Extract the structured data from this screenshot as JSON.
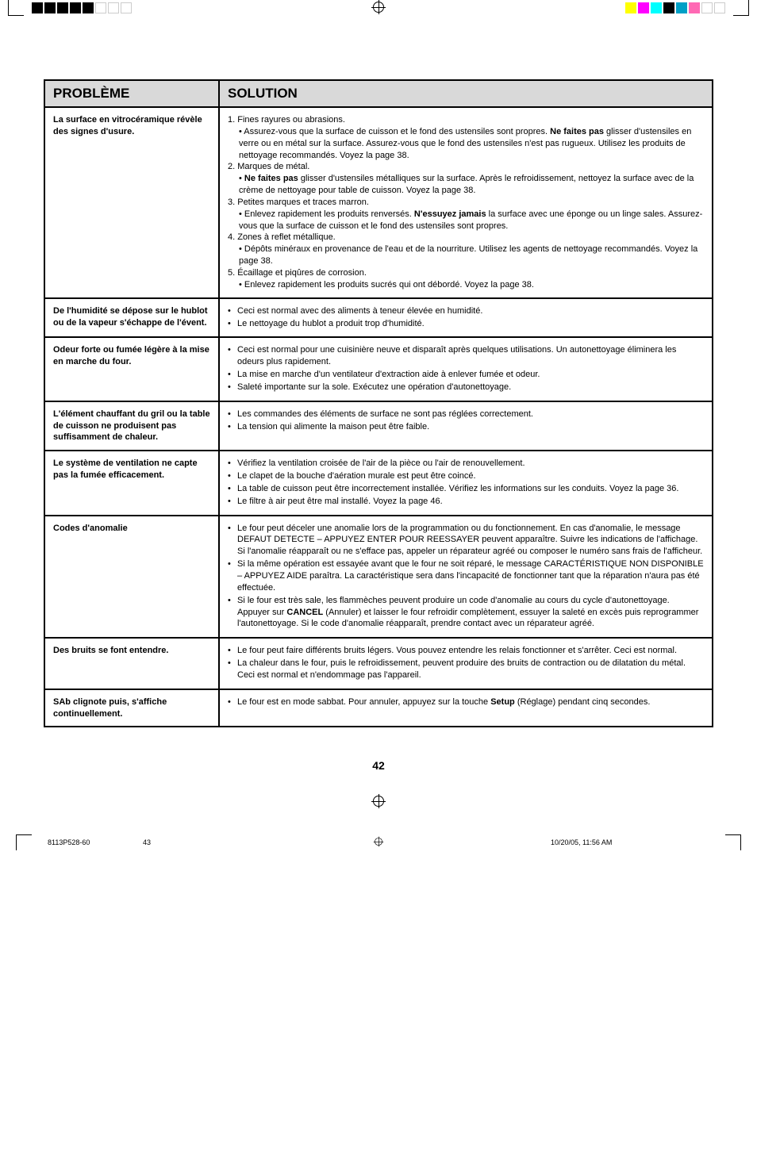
{
  "crop_colors_left": [
    "#000000",
    "#000000",
    "#000000",
    "#000000",
    "#000000",
    "#ffffff",
    "#ffffff",
    "#ffffff"
  ],
  "crop_colors_right": [
    "#ffff00",
    "#ff00ff",
    "#00ffff",
    "#000000",
    "#00a0c6",
    "#ff69b4",
    "#ffffff",
    "#ffffff"
  ],
  "header": {
    "col1": "PROBLÈME",
    "col2": "SOLUTION"
  },
  "rows": [
    {
      "problem": "La surface en vitrocéramique révèle  des signes d'usure.",
      "solution_html": "1. Fines rayures ou abrasions.<div class='sub'>• Assurez-vous que la surface de cuisson et le fond des ustensiles sont propres. <b>Ne faites pas</b> glisser d'ustensiles en verre ou en métal sur la surface.  Assurez-vous que le fond des ustensiles n'est pas rugueux. Utilisez les produits de nettoyage recommandés. Voyez la page 38.</div>2. Marques de métal.<div class='sub'>• <b>Ne faites pas</b> glisser d'ustensiles métalliques sur la surface.  Après le refroidissement, nettoyez la surface avec de la crème de nettoyage pour table de cuisson. Voyez la page 38.</div>3. Petites marques et traces marron.<div class='sub'>• Enlevez rapidement les produits renversés. <b>N'essuyez jamais</b> la surface avec une éponge ou un linge sales. Assurez-vous que la surface de cuisson et le fond des ustensiles sont propres.</div>4. Zones à reflet métallique.<div class='sub'>• Dépôts minéraux en provenance de l'eau et de la nourriture. Utilisez les agents de nettoyage recommandés. Voyez la page 38.</div>5. Écaillage et piqûres de corrosion.<div class='sub'>• Enlevez rapidement les produits sucrés qui ont débordé. Voyez la page 38.</div>"
    },
    {
      "problem": "De l'humidité se dépose sur le hublot ou de la vapeur s'échappe de l'évent.",
      "solution_items": [
        "Ceci est normal avec des aliments à teneur élevée en humidité.",
        "Le nettoyage du hublot a produit trop d'humidité."
      ]
    },
    {
      "problem": "Odeur forte ou fumée légère à la mise en marche du four.",
      "solution_items": [
        "Ceci est normal pour une cuisinière neuve et disparaît après quelques utilisations.  Un autonettoyage éliminera les odeurs plus rapidement.",
        "La mise en marche d'un ventilateur d'extraction aide à enlever fumée et odeur.",
        "Saleté importante sur la sole.  Exécutez une opération d'autonettoyage."
      ]
    },
    {
      "problem": "L'élément chauffant du gril ou la table de cuisson ne produisent pas suffisamment de chaleur.",
      "solution_items": [
        "Les commandes des éléments de surface ne sont pas réglées correctement.",
        "La tension qui alimente la maison peut être faible."
      ]
    },
    {
      "problem": "Le système de ventilation ne capte pas la fumée efficacement.",
      "solution_items": [
        "Vérifiez la ventilation croisée de l'air de la pièce ou l'air de renouvellement.",
        "Le clapet de la bouche d'aération murale est peut être coincé.",
        "La table de cuisson peut être incorrectement installée. Vérifiez les informations sur les conduits. Voyez la page 36.",
        "Le filtre à air peut être mal installé. Voyez la page 46."
      ]
    },
    {
      "problem": "Codes d'anomalie",
      "solution_items": [
        "Le four peut déceler une anomalie lors de la programmation ou du fonctionnement. En cas d'anomalie, le message DEFAUT DETECTE – APPUYEZ ENTER POUR REESSAYER peuvent apparaître. Suivre les indications de l'affichage. Si l'anomalie réapparaît ou ne s'efface pas, appeler un réparateur agréé ou composer le numéro sans frais de l'afficheur.",
        "Si la même opération est essayée avant que le four ne soit réparé, le message CARACTÉRISTIQUE NON DISPONIBLE – APPUYEZ AIDE paraîtra. La caractéristique sera dans l'incapacité de fonctionner tant que la réparation n'aura pas été effectuée.",
        "Si le four est très sale, les flammèches peuvent produire un code d'anomalie au cours du cycle d'autonettoyage. Appuyer sur <b>CANCEL</b> (Annuler) et laisser le four refroidir complètement, essuyer la saleté en excès puis reprogrammer l'autonettoyage. Si le code d'anomalie réapparaît, prendre contact avec un réparateur agréé."
      ]
    },
    {
      "problem": "Des bruits se font entendre.",
      "solution_items": [
        "Le four peut faire différents bruits légers. Vous pouvez entendre les relais fonctionner et s'arrêter. Ceci est normal.",
        "La chaleur dans le four, puis le refroidissement, peuvent produire des bruits de contraction ou de dilatation du métal. Ceci est normal et n'endommage pas l'appareil."
      ]
    },
    {
      "problem": "SAb clignote puis, s'affiche continuellement.",
      "solution_items": [
        "Le four est en mode sabbat. Pour annuler, appuyez sur la touche <b>Setup</b> (Réglage) pendant cinq secondes."
      ]
    }
  ],
  "page_number": "42",
  "footer": {
    "left": "8113P528-60",
    "center_page": "43",
    "right": "10/20/05, 11:56 AM"
  }
}
